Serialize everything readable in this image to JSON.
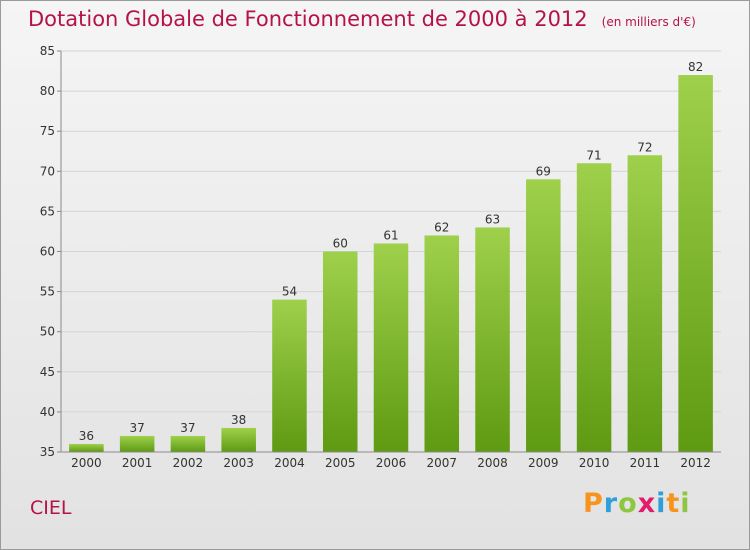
{
  "header": {
    "title": "Dotation Globale de Fonctionnement de 2000 à 2012",
    "unit": "(en milliers d'€)"
  },
  "footer": {
    "commune": "CIEL",
    "logo": {
      "text": "Proxiti",
      "colors": [
        "#f7941d",
        "#2e9fd8",
        "#8dc63f",
        "#e31b6d",
        "#2e9fd8",
        "#f7941d",
        "#8dc63f"
      ]
    }
  },
  "colors": {
    "bar_top": "#9fd04c",
    "bar_bottom": "#5e9a12",
    "title": "#b5124a",
    "grid": "#d4d4d4",
    "axis": "#8a8a8a"
  },
  "chart_data": {
    "type": "bar",
    "categories": [
      "2000",
      "2001",
      "2002",
      "2003",
      "2004",
      "2005",
      "2006",
      "2007",
      "2008",
      "2009",
      "2010",
      "2011",
      "2012"
    ],
    "values": [
      36,
      37,
      37,
      38,
      54,
      60,
      61,
      62,
      63,
      69,
      71,
      72,
      82
    ],
    "ylim": [
      35,
      85
    ],
    "yticks": [
      35,
      40,
      45,
      50,
      55,
      60,
      65,
      70,
      75,
      80,
      85
    ],
    "grid": true,
    "data_labels": true
  }
}
